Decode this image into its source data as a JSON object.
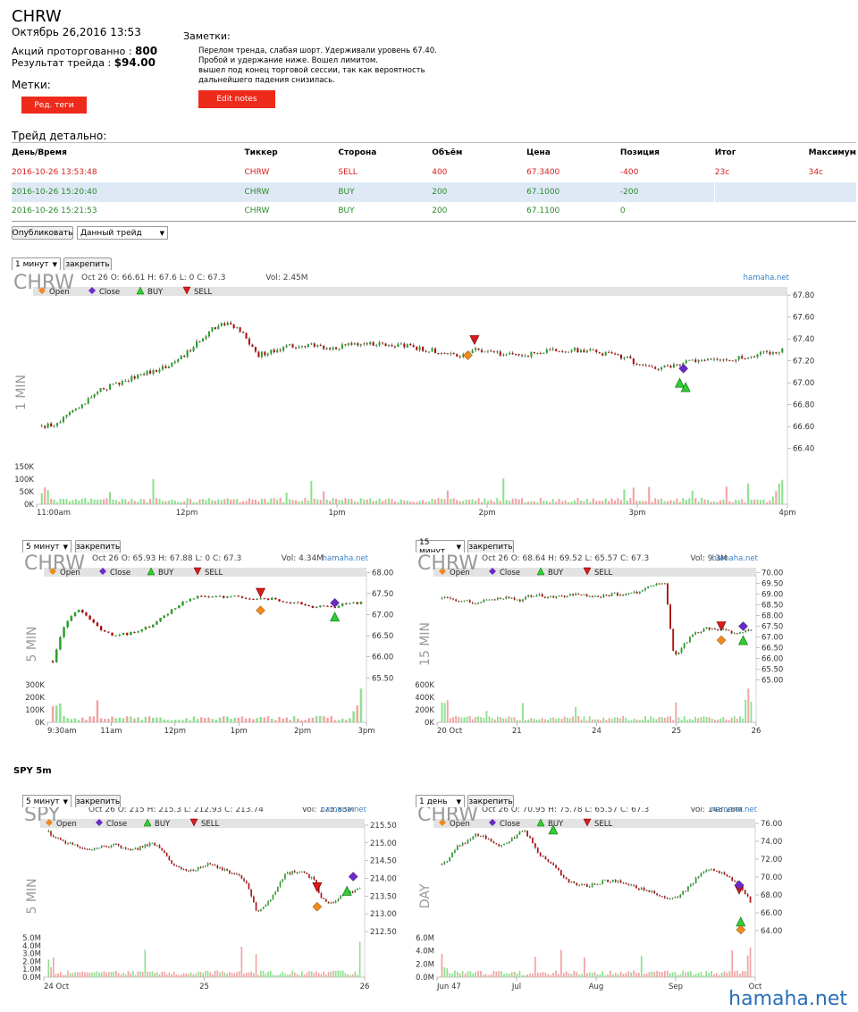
{
  "header": {
    "ticker": "CHRW",
    "datetime": "Октябрь 26,2016 13:53",
    "shares_label": "Акций проторгованно : ",
    "shares_value": "800",
    "result_label": "Результат трейда : ",
    "result_value": "$94.00",
    "tags_label": "Метки:",
    "tags_button": "Ред. теги",
    "notes_label": "Заметки:",
    "notes_lines": [
      "Перелом тренда, слабая шорт. Удерживали уровень 67.40.",
      "Пробой и удержание ниже. Вошел лимитом.",
      "вышел под конец торговой сессии, так как вероятность",
      "дальнейшего падения снизилась."
    ],
    "edit_notes_button": "Edit notes"
  },
  "trades": {
    "section_title": "Трейд детально:",
    "columns": [
      "День/Время",
      "Тиккер",
      "Сторона",
      "Объём",
      "Цена",
      "Позиция",
      "Итог",
      "Максимум"
    ],
    "rows": [
      {
        "datetime": "2016-10-26 13:53:48",
        "ticker": "CHRW",
        "side": "SELL",
        "volume": "400",
        "price": "67.3400",
        "position": "-400",
        "result": "23c",
        "max": "34c"
      },
      {
        "datetime": "2016-10-26 15:20:40",
        "ticker": "CHRW",
        "side": "BUY",
        "volume": "200",
        "price": "67.1000",
        "position": "-200",
        "result": "",
        "max": ""
      },
      {
        "datetime": "2016-10-26 15:21:53",
        "ticker": "CHRW",
        "side": "BUY",
        "volume": "200",
        "price": "67.1100",
        "position": "0",
        "result": "",
        "max": ""
      }
    ]
  },
  "controls": {
    "publish_button": "Опубликовать",
    "scope_select": "Данный трейд",
    "pin_button": "закрепить"
  },
  "legend": {
    "open": "Open",
    "close": "Close",
    "buy": "BUY",
    "sell": "SELL"
  },
  "colors": {
    "up": "#2aa02a",
    "down": "#b01010",
    "open_marker": "#f08a1c",
    "close_marker": "#6a2bc6",
    "buy_marker": "#33cc33",
    "sell_marker": "#d81b1b",
    "vol_up": "#8fe08f",
    "vol_down": "#f2a3a3"
  },
  "charts": [
    {
      "id": "c1",
      "interval_select": "1 минут",
      "symbol": "CHRW",
      "ohlc": "Oct 26 O: 66.61 H: 67.6 L: 0 C: 67.3",
      "vol": "Vol: 2.45M",
      "brand": "hamaha.net",
      "vertical_label": "1 MIN",
      "y_ticks": [
        "67.80",
        "67.60",
        "67.40",
        "67.20",
        "67.00",
        "66.80",
        "66.60",
        "66.40"
      ],
      "vol_ticks": [
        "150K",
        "100K",
        "50K",
        "0K"
      ],
      "x_ticks": [
        "11:00am",
        "12pm",
        "1pm",
        "2pm",
        "3pm",
        "4pm"
      ],
      "price_range": [
        66.3,
        67.85
      ],
      "path": [
        66.6,
        66.62,
        66.75,
        66.85,
        66.95,
        67.0,
        67.05,
        67.1,
        67.15,
        67.22,
        67.35,
        67.5,
        67.55,
        67.45,
        67.25,
        67.3,
        67.33,
        67.35,
        67.33,
        67.32,
        67.35,
        67.36,
        67.35,
        67.34,
        67.33,
        67.3,
        67.28,
        67.25,
        67.3,
        67.27,
        67.26,
        67.25,
        67.27,
        67.29,
        67.3,
        67.29,
        67.28,
        67.25,
        67.22,
        67.15,
        67.13,
        67.17,
        67.19,
        67.21,
        67.2,
        67.22,
        67.24,
        67.28,
        67.3
      ],
      "markers": [
        {
          "type": "sell",
          "t": 0.584,
          "p": 67.39
        },
        {
          "type": "open",
          "t": 0.575,
          "p": 67.25
        },
        {
          "type": "close",
          "t": 0.865,
          "p": 67.13
        },
        {
          "type": "buy",
          "t": 0.86,
          "p": 67.0
        },
        {
          "type": "buy",
          "t": 0.868,
          "p": 66.96
        }
      ],
      "last_volume_spikes": [
        0.05,
        0.1,
        0.2,
        0.35,
        0.55,
        0.65
      ]
    },
    {
      "id": "c2",
      "interval_select": "5 минут",
      "symbol": "CHRW",
      "ohlc": "Oct 26 O: 65.93 H: 67.88 L: 0 C: 67.3",
      "vol": "Vol: 4.34M",
      "brand": "hamaha.net",
      "vertical_label": "5 MIN",
      "y_ticks": [
        "68.00",
        "67.50",
        "67.00",
        "66.50",
        "66.00",
        "65.50"
      ],
      "vol_ticks": [
        "300K",
        "200K",
        "100K",
        "0K"
      ],
      "x_ticks": [
        "9:30am",
        "11am",
        "12pm",
        "1pm",
        "2pm",
        "3pm"
      ],
      "price_range": [
        65.4,
        68.05
      ],
      "path": [
        65.9,
        66.8,
        67.1,
        66.9,
        66.6,
        66.5,
        66.55,
        66.6,
        66.75,
        66.95,
        67.2,
        67.35,
        67.45,
        67.42,
        67.4,
        67.42,
        67.4,
        67.38,
        67.36,
        67.3,
        67.25,
        67.2,
        67.18,
        67.2,
        67.25,
        67.3
      ],
      "markers": [
        {
          "type": "sell",
          "t": 0.672,
          "p": 67.52
        },
        {
          "type": "open",
          "t": 0.672,
          "p": 67.1
        },
        {
          "type": "close",
          "t": 0.91,
          "p": 67.28
        },
        {
          "type": "buy",
          "t": 0.91,
          "p": 66.95
        }
      ],
      "last_volume_spikes": [
        0.3,
        0.45,
        0.9
      ]
    },
    {
      "id": "c3",
      "interval_select": "15 минут",
      "symbol": "CHRW",
      "ohlc": "Oct 26 O: 68.64 H: 69.52 L: 65.57 C: 67.3",
      "vol": "Vol: 9.3M",
      "brand": "hamaha.net",
      "vertical_label": "15 MIN",
      "y_ticks": [
        "70.00",
        "69.50",
        "69.00",
        "68.50",
        "68.00",
        "67.50",
        "67.00",
        "66.50",
        "66.00",
        "65.50",
        "65.00"
      ],
      "vol_ticks": [
        "600K",
        "400K",
        "200K",
        "0K"
      ],
      "x_ticks": [
        "20 Oct",
        "21",
        "24",
        "25",
        "26"
      ],
      "price_range": [
        64.9,
        70.1
      ],
      "path": [
        68.8,
        68.75,
        68.7,
        68.65,
        68.6,
        68.7,
        68.8,
        68.85,
        68.8,
        68.7,
        68.9,
        68.95,
        68.9,
        68.85,
        68.9,
        68.95,
        69.0,
        68.95,
        68.9,
        68.95,
        69.0,
        68.9,
        69.0,
        69.1,
        69.3,
        69.45,
        69.5,
        66.0,
        66.6,
        67.0,
        67.3,
        67.4,
        67.35,
        67.3,
        67.2,
        67.25,
        67.3
      ],
      "markers": [
        {
          "type": "sell",
          "t": 0.9,
          "p": 67.5
        },
        {
          "type": "open",
          "t": 0.9,
          "p": 66.85
        },
        {
          "type": "close",
          "t": 0.97,
          "p": 67.5
        },
        {
          "type": "buy",
          "t": 0.97,
          "p": 66.85
        }
      ],
      "last_volume_spikes": [
        0.6,
        0.9,
        0.55
      ]
    },
    {
      "id": "c4",
      "interval_select": "5 минут",
      "symbol": "SPY",
      "ohlc": "Oct 26 O: 215 H: 215.3 L: 212.93 C: 213.74",
      "vol": "Vol: 175.83M",
      "brand": "hamaha.net",
      "vertical_label": "5 MIN",
      "y_ticks": [
        "215.50",
        "215.00",
        "214.50",
        "214.00",
        "213.50",
        "213.00",
        "212.50"
      ],
      "vol_ticks": [
        "5.0M",
        "4.0M",
        "3.0M",
        "2.0M",
        "1.0M",
        "0.0M"
      ],
      "x_ticks": [
        "24 Oct",
        "25",
        "26"
      ],
      "price_range": [
        212.4,
        215.6
      ],
      "path": [
        215.3,
        215.1,
        215.0,
        214.9,
        214.8,
        214.85,
        214.9,
        214.95,
        214.85,
        214.8,
        214.9,
        215.0,
        214.8,
        214.4,
        214.3,
        214.2,
        214.3,
        214.4,
        214.3,
        214.2,
        214.1,
        213.9,
        213.1,
        213.2,
        213.6,
        214.1,
        214.2,
        214.15,
        214.0,
        213.4,
        213.3,
        213.5,
        213.6,
        213.74
      ],
      "markers": [
        {
          "type": "sell",
          "t": 0.86,
          "p": 213.75
        },
        {
          "type": "open",
          "t": 0.86,
          "p": 213.2
        },
        {
          "type": "close",
          "t": 0.975,
          "p": 214.05
        },
        {
          "type": "buy",
          "t": 0.955,
          "p": 213.65
        }
      ],
      "last_volume_spikes": [
        0.9
      ]
    },
    {
      "id": "c5",
      "interval_select": "1 день",
      "symbol": "CHRW",
      "ohlc": "Oct 26 O: 70.95 H: 75.78 L: 65.57 C: 67.3",
      "vol": "Vol: 148.26M",
      "brand": "hamaha.net",
      "vertical_label": "DAY",
      "y_ticks": [
        "76.00",
        "74.00",
        "72.00",
        "70.00",
        "68.00",
        "66.00",
        "64.00"
      ],
      "vol_ticks": [
        "6.0M",
        "4.0M",
        "2.0M",
        "0.0M"
      ],
      "x_ticks": [
        "Jun 47",
        "Jul",
        "Aug",
        "Sep",
        "Oct"
      ],
      "price_range": [
        63.5,
        76.2
      ],
      "path": [
        71.5,
        72.2,
        73.5,
        74.0,
        74.8,
        74.5,
        74.0,
        73.5,
        73.8,
        74.5,
        75.3,
        74.0,
        72.5,
        71.8,
        71.2,
        70.0,
        69.3,
        69.2,
        69.0,
        69.3,
        69.5,
        69.6,
        69.4,
        69.2,
        68.8,
        68.5,
        68.3,
        68.0,
        67.6,
        67.8,
        68.5,
        69.5,
        70.5,
        70.8,
        70.6,
        70.2,
        69.4,
        68.6,
        67.3
      ],
      "markers": [
        {
          "type": "buy",
          "t": 0.362,
          "p": 75.3
        },
        {
          "type": "sell",
          "t": 0.96,
          "p": 68.6
        },
        {
          "type": "close",
          "t": 0.96,
          "p": 69.1
        },
        {
          "type": "buy",
          "t": 0.965,
          "p": 65.0
        },
        {
          "type": "open",
          "t": 0.965,
          "p": 64.1
        }
      ],
      "last_volume_spikes": [
        0.55,
        0.75
      ]
    }
  ],
  "spy_section_title": "SPY 5m",
  "watermark": "hamaha.net"
}
